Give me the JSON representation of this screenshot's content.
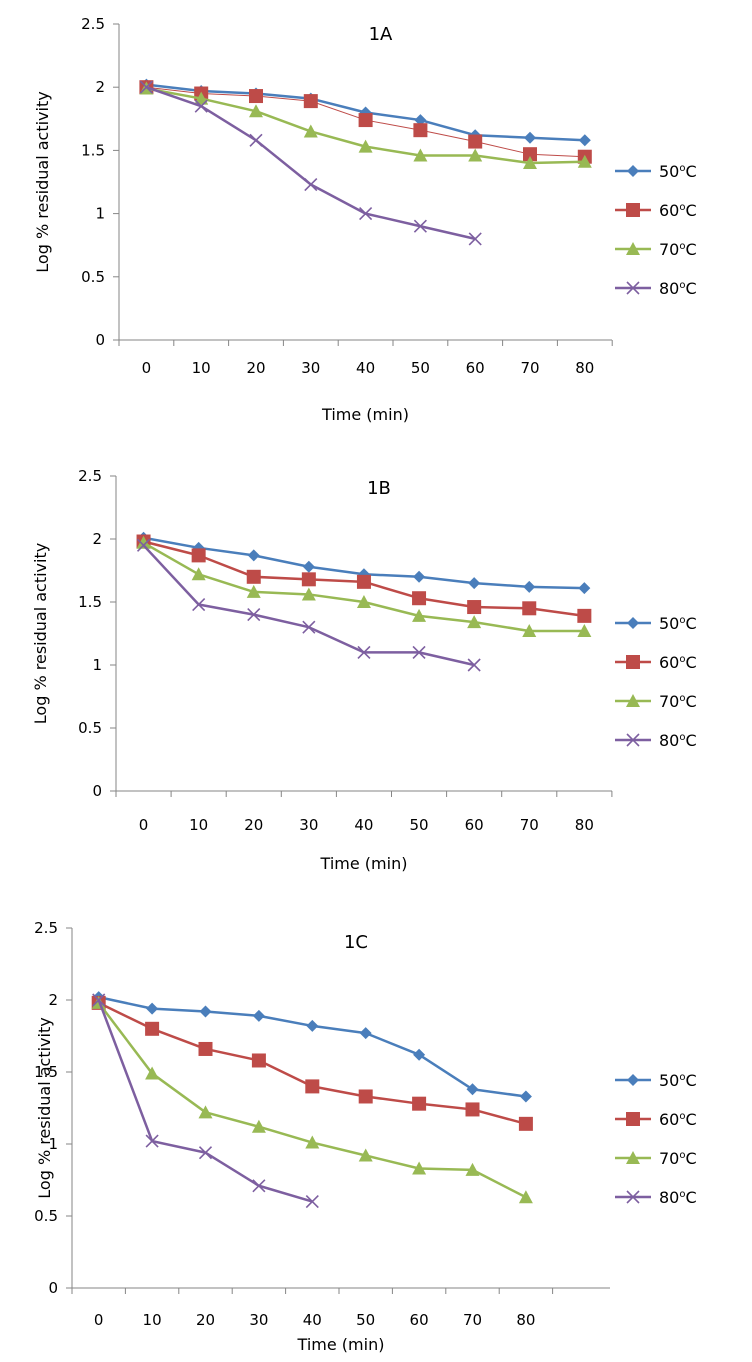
{
  "chart_data": [
    {
      "type": "line",
      "title": "1A",
      "xlabel": "Time (min)",
      "ylabel": "Log % residual activity",
      "categories": [
        "0",
        "10",
        "20",
        "30",
        "40",
        "50",
        "60",
        "70",
        "80"
      ],
      "ylim": [
        0,
        2.5
      ],
      "yticks": [
        "0",
        "0.5",
        "1",
        "1.5",
        "2",
        "2.5"
      ],
      "grid": false,
      "legend": "right",
      "series": [
        {
          "name": "50oC",
          "color": "#4a7ebb",
          "marker": "diamond",
          "values": [
            2.02,
            1.97,
            1.95,
            1.91,
            1.8,
            1.74,
            1.62,
            1.6,
            1.58
          ]
        },
        {
          "name": "60oC",
          "color": "#be4b48",
          "marker": "square",
          "values": [
            2.0,
            1.95,
            1.93,
            1.89,
            1.74,
            1.66,
            1.57,
            1.47,
            1.45
          ]
        },
        {
          "name": "70oC",
          "color": "#98b954",
          "marker": "triangle",
          "values": [
            1.99,
            1.91,
            1.81,
            1.65,
            1.53,
            1.46,
            1.46,
            1.4,
            1.41
          ]
        },
        {
          "name": "80oC",
          "color": "#7d5fa0",
          "marker": "x",
          "values": [
            2.0,
            1.85,
            1.58,
            1.23,
            1.0,
            0.9,
            0.8,
            null,
            null
          ]
        }
      ]
    },
    {
      "type": "line",
      "title": "1B",
      "xlabel": "Time (min)",
      "ylabel": "Log % residual activity",
      "categories": [
        "0",
        "10",
        "20",
        "30",
        "40",
        "50",
        "60",
        "70",
        "80"
      ],
      "ylim": [
        0,
        2.5
      ],
      "yticks": [
        "0",
        "0.5",
        "1",
        "1.5",
        "2",
        "2.5"
      ],
      "grid": false,
      "legend": "right",
      "series": [
        {
          "name": "50oC",
          "color": "#4a7ebb",
          "marker": "diamond",
          "values": [
            2.01,
            1.93,
            1.87,
            1.78,
            1.72,
            1.7,
            1.65,
            1.62,
            1.61
          ]
        },
        {
          "name": "60oC",
          "color": "#be4b48",
          "marker": "square",
          "values": [
            1.98,
            1.87,
            1.7,
            1.68,
            1.66,
            1.53,
            1.46,
            1.45,
            1.39
          ]
        },
        {
          "name": "70oC",
          "color": "#98b954",
          "marker": "triangle",
          "values": [
            1.97,
            1.72,
            1.58,
            1.56,
            1.5,
            1.39,
            1.34,
            1.27,
            1.27
          ]
        },
        {
          "name": "80oC",
          "color": "#7d5fa0",
          "marker": "x",
          "values": [
            1.95,
            1.48,
            1.4,
            1.3,
            1.1,
            1.1,
            1.0,
            null,
            null
          ]
        }
      ]
    },
    {
      "type": "line",
      "title": "1C",
      "xlabel": "Time (min)",
      "ylabel": "Log % residual activity",
      "categories": [
        "0",
        "10",
        "20",
        "30",
        "40",
        "50",
        "60",
        "70",
        "80"
      ],
      "ylim": [
        0,
        2.5
      ],
      "yticks": [
        "0",
        "0.5",
        "1",
        "1.5",
        "2",
        "2.5"
      ],
      "grid": false,
      "legend": "right",
      "series": [
        {
          "name": "50oC",
          "color": "#4a7ebb",
          "marker": "diamond",
          "values": [
            2.02,
            1.94,
            1.92,
            1.89,
            1.82,
            1.77,
            1.62,
            1.38,
            1.33
          ]
        },
        {
          "name": "60oC",
          "color": "#be4b48",
          "marker": "square",
          "values": [
            1.98,
            1.8,
            1.66,
            1.58,
            1.4,
            1.33,
            1.28,
            1.24,
            1.14
          ]
        },
        {
          "name": "70oC",
          "color": "#98b954",
          "marker": "triangle",
          "values": [
            1.98,
            1.49,
            1.22,
            1.12,
            1.01,
            0.92,
            0.83,
            0.82,
            0.63
          ]
        },
        {
          "name": "80oC",
          "color": "#7d5fa0",
          "marker": "x",
          "values": [
            2.0,
            1.02,
            0.94,
            0.71,
            0.6,
            null,
            null,
            null,
            null
          ]
        }
      ]
    }
  ]
}
